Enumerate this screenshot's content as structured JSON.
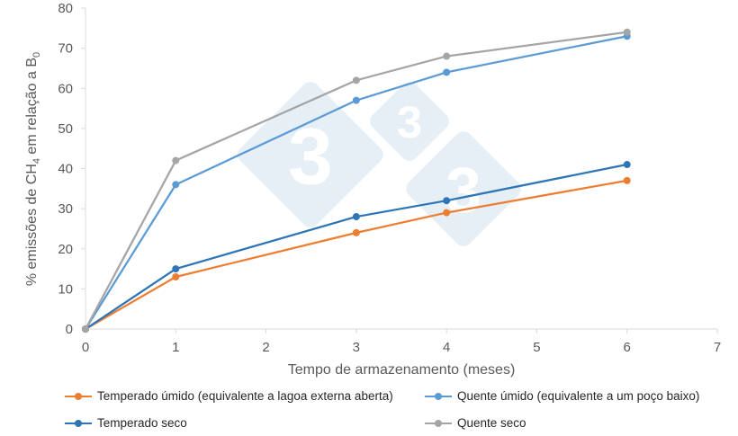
{
  "chart_data": {
    "type": "line",
    "title": "",
    "xlabel": "Tempo de armazenamento (meses)",
    "ylabel": "% emissões de CH4 em relação a B0",
    "ylabel_parts": {
      "main": "% emissões de CH",
      "sub1": "4",
      "mid": " em relação a B",
      "sub2": "0"
    },
    "xlim": [
      0,
      7
    ],
    "ylim": [
      0,
      80
    ],
    "x_ticks": [
      0,
      1,
      2,
      3,
      4,
      5,
      6,
      7
    ],
    "y_ticks": [
      0,
      10,
      20,
      30,
      40,
      50,
      60,
      70,
      80
    ],
    "grid": false,
    "legend_position": "bottom",
    "x": [
      0,
      1,
      3,
      4,
      6
    ],
    "series": [
      {
        "name": "Temperado úmido (equivalente a lagoa externa aberta)",
        "color": "#ED7D31",
        "values": [
          0,
          13,
          24,
          29,
          37
        ]
      },
      {
        "name": "Quente úmido (equivalente a um poço baixo)",
        "color": "#5B9BD5",
        "values": [
          0,
          36,
          57,
          64,
          73
        ]
      },
      {
        "name": "Temperado seco",
        "color": "#2E75B6",
        "values": [
          0,
          15,
          28,
          32,
          41
        ]
      },
      {
        "name": "Quente seco",
        "color": "#A5A5A5",
        "values": [
          0,
          42,
          62,
          68,
          74
        ]
      }
    ]
  },
  "watermark": {
    "glyph": "3",
    "color": "#E6EEF6"
  }
}
